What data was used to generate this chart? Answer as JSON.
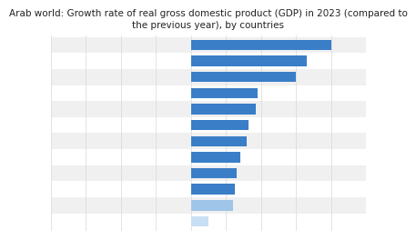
{
  "title": "Arab world: Growth rate of real gross domestic product (GDP) in 2023 (compared to\nthe previous year), by countries",
  "values": [
    8.0,
    6.6,
    6.0,
    3.8,
    3.7,
    3.3,
    3.2,
    2.8,
    2.6,
    2.5,
    2.4,
    1.0
  ],
  "bar_colors": [
    "#3a7ec8",
    "#3a7ec8",
    "#3a7ec8",
    "#3a7ec8",
    "#3a7ec8",
    "#3a7ec8",
    "#3a7ec8",
    "#3a7ec8",
    "#3a7ec8",
    "#3a7ec8",
    "#9fc5e8",
    "#c9dff4"
  ],
  "xlim": [
    -8,
    10
  ],
  "title_fontsize": 7.5,
  "background_color": "#ffffff",
  "row_odd_color": "#f0f0f0",
  "row_even_color": "#ffffff",
  "grid_color": "#d8d8d8"
}
